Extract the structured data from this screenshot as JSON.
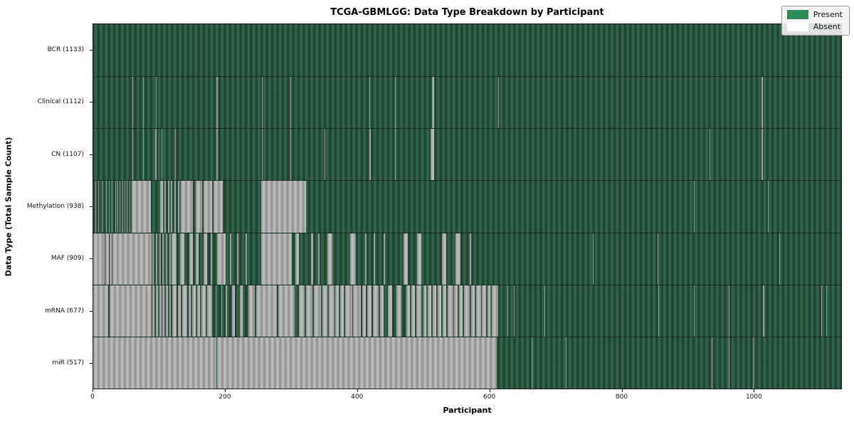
{
  "title": "TCGA-GBMLGG: Data Type Breakdown by Participant",
  "axes": {
    "xlabel": "Participant",
    "ylabel": "Data Type (Total Sample Count)",
    "x_ticks": [
      0,
      200,
      400,
      600,
      800,
      1000
    ]
  },
  "legend": {
    "items": [
      {
        "label": "Present",
        "color": "#2e8b57"
      },
      {
        "label": "Absent",
        "color": "#ffffff"
      }
    ]
  },
  "chart_data": {
    "type": "heatmap",
    "title": "TCGA-GBMLGG: Data Type Breakdown by Participant",
    "xlabel": "Participant",
    "ylabel": "Data Type (Total Sample Count)",
    "legend_position": "upper right",
    "grid": false,
    "n_participants": 1133,
    "x_range": [
      0,
      1133
    ],
    "x_tick_labels": [
      "0",
      "200",
      "400",
      "600",
      "800",
      "1000"
    ],
    "present_color": "#2e8b57",
    "absent_color": "#ffffff",
    "rows": [
      {
        "key": "bcr",
        "label": "BCR (1133)",
        "data_type": "BCR",
        "total_samples": 1133,
        "absent_ranges": []
      },
      {
        "key": "clinical",
        "label": "Clinical (1112)",
        "data_type": "Clinical",
        "total_samples": 1112,
        "absent_ranges": [
          [
            59,
            60
          ],
          [
            75,
            77
          ],
          [
            95,
            96
          ],
          [
            186,
            189
          ],
          [
            256,
            257
          ],
          [
            299,
            300
          ],
          [
            418,
            419
          ],
          [
            457,
            458
          ],
          [
            513,
            516
          ],
          [
            613,
            614
          ],
          [
            1012,
            1014
          ]
        ]
      },
      {
        "key": "cn",
        "label": "CN (1107)",
        "data_type": "CN",
        "total_samples": 1107,
        "absent_ranges": [
          [
            59,
            60
          ],
          [
            75,
            77
          ],
          [
            94,
            96
          ],
          [
            104,
            105
          ],
          [
            124,
            125
          ],
          [
            186,
            189
          ],
          [
            256,
            257
          ],
          [
            299,
            300
          ],
          [
            350,
            351
          ],
          [
            418,
            420
          ],
          [
            457,
            458
          ],
          [
            511,
            516
          ],
          [
            934,
            935
          ],
          [
            1012,
            1014
          ]
        ]
      },
      {
        "key": "methylation",
        "label": "Methylation (938)",
        "data_type": "Methylation",
        "total_samples": 938,
        "absent_ranges": [
          [
            3,
            4
          ],
          [
            8,
            9
          ],
          [
            14,
            15
          ],
          [
            19,
            20
          ],
          [
            24,
            25
          ],
          [
            28,
            29
          ],
          [
            33,
            34
          ],
          [
            37,
            38
          ],
          [
            40,
            41
          ],
          [
            44,
            45
          ],
          [
            47,
            48
          ],
          [
            51,
            52
          ],
          [
            55,
            56
          ],
          [
            58,
            87
          ],
          [
            101,
            106
          ],
          [
            108,
            110
          ],
          [
            113,
            115
          ],
          [
            118,
            120
          ],
          [
            123,
            125
          ],
          [
            128,
            130
          ],
          [
            133,
            151
          ],
          [
            155,
            165
          ],
          [
            167,
            180
          ],
          [
            182,
            196
          ],
          [
            254,
            322
          ],
          [
            910,
            911
          ],
          [
            1022,
            1023
          ]
        ]
      },
      {
        "key": "maf",
        "label": "MAF (909)",
        "data_type": "MAF",
        "total_samples": 909,
        "absent_ranges": [
          [
            0,
            6
          ],
          [
            7,
            17
          ],
          [
            18,
            24
          ],
          [
            25,
            28
          ],
          [
            29,
            88
          ],
          [
            90,
            92
          ],
          [
            95,
            97
          ],
          [
            100,
            102
          ],
          [
            105,
            107
          ],
          [
            110,
            112
          ],
          [
            115,
            117
          ],
          [
            119,
            126
          ],
          [
            131,
            138
          ],
          [
            145,
            151
          ],
          [
            155,
            160
          ],
          [
            167,
            173
          ],
          [
            178,
            180
          ],
          [
            188,
            201
          ],
          [
            207,
            209
          ],
          [
            218,
            220
          ],
          [
            231,
            233
          ],
          [
            254,
            301
          ],
          [
            306,
            312
          ],
          [
            330,
            333
          ],
          [
            341,
            343
          ],
          [
            355,
            362
          ],
          [
            389,
            398
          ],
          [
            412,
            414
          ],
          [
            425,
            427
          ],
          [
            440,
            442
          ],
          [
            470,
            477
          ],
          [
            491,
            497
          ],
          [
            528,
            535
          ],
          [
            549,
            556
          ],
          [
            570,
            572
          ],
          [
            757,
            758
          ],
          [
            855,
            856
          ],
          [
            904,
            905
          ],
          [
            1039,
            1040
          ]
        ]
      },
      {
        "key": "mrna",
        "label": "mRNA (677)",
        "data_type": "mRNA",
        "total_samples": 677,
        "absent_ranges": [
          [
            0,
            23
          ],
          [
            25,
            88
          ],
          [
            90,
            93
          ],
          [
            95,
            98
          ],
          [
            100,
            103
          ],
          [
            105,
            108
          ],
          [
            110,
            113
          ],
          [
            115,
            118
          ],
          [
            120,
            126
          ],
          [
            128,
            133
          ],
          [
            135,
            142
          ],
          [
            144,
            148
          ],
          [
            150,
            155
          ],
          [
            157,
            162
          ],
          [
            164,
            170
          ],
          [
            172,
            180
          ],
          [
            185,
            186
          ],
          [
            194,
            195
          ],
          [
            200,
            203
          ],
          [
            210,
            215
          ],
          [
            222,
            226
          ],
          [
            235,
            245
          ],
          [
            247,
            278
          ],
          [
            280,
            305
          ],
          [
            312,
            320
          ],
          [
            322,
            332
          ],
          [
            334,
            345
          ],
          [
            347,
            355
          ],
          [
            357,
            365
          ],
          [
            367,
            372
          ],
          [
            374,
            380
          ],
          [
            382,
            392
          ],
          [
            394,
            405
          ],
          [
            407,
            413
          ],
          [
            415,
            422
          ],
          [
            424,
            432
          ],
          [
            434,
            440
          ],
          [
            446,
            453
          ],
          [
            459,
            467
          ],
          [
            474,
            480
          ],
          [
            482,
            487
          ],
          [
            489,
            497
          ],
          [
            500,
            505
          ],
          [
            507,
            512
          ],
          [
            514,
            520
          ],
          [
            522,
            527
          ],
          [
            529,
            535
          ],
          [
            537,
            545
          ],
          [
            547,
            552
          ],
          [
            554,
            560
          ],
          [
            562,
            570
          ],
          [
            572,
            578
          ],
          [
            580,
            587
          ],
          [
            589,
            595
          ],
          [
            597,
            602
          ],
          [
            604,
            613
          ],
          [
            627,
            628
          ],
          [
            637,
            638
          ],
          [
            684,
            685
          ],
          [
            856,
            857
          ],
          [
            910,
            911
          ],
          [
            963,
            964
          ],
          [
            1014,
            1017
          ],
          [
            1103,
            1104
          ],
          [
            1110,
            1111
          ]
        ]
      },
      {
        "key": "mir",
        "label": "miR (517)",
        "data_type": "miR",
        "total_samples": 517,
        "absent_ranges": [
          [
            0,
            187
          ],
          [
            188,
            611
          ],
          [
            664,
            665
          ],
          [
            716,
            717
          ],
          [
            937,
            938
          ],
          [
            963,
            964
          ],
          [
            999,
            1000
          ],
          [
            1015,
            1016
          ]
        ]
      }
    ]
  }
}
